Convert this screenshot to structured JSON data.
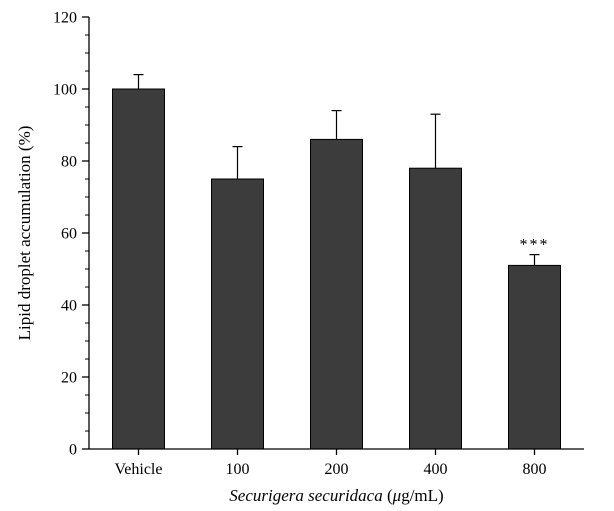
{
  "chart_data": {
    "type": "bar",
    "categories": [
      "Vehicle",
      "100",
      "200",
      "400",
      "800"
    ],
    "values": [
      100,
      75,
      86,
      78,
      51
    ],
    "errors": [
      4,
      9,
      8,
      15,
      3
    ],
    "annotations": [
      "",
      "",
      "",
      "",
      "***"
    ],
    "ylabel": "Lipid droplet accumulation (%)",
    "xlabel": {
      "italic": "Securigera securidaca",
      "unit_open": " (",
      "unit_mu": "μ",
      "unit_rest": "g/mL)"
    },
    "ylim": [
      0,
      120
    ],
    "yticks": [
      0,
      20,
      40,
      60,
      80,
      100,
      120
    ],
    "grid": false,
    "bar_color": "#3c3c3c",
    "axis_color": "#000000"
  }
}
